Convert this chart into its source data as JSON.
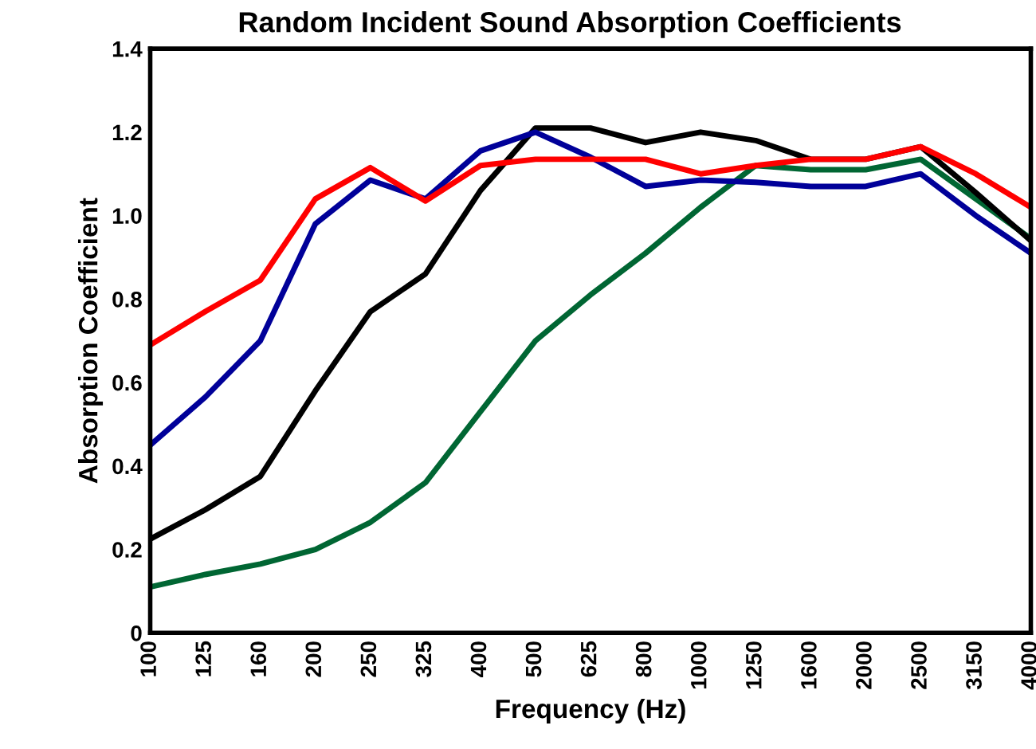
{
  "chart_data": {
    "type": "line",
    "title": "Random Incident Sound Absorption Coefficients",
    "xlabel": "Frequency (Hz)",
    "ylabel": "Absorption Coefficient",
    "categories": [
      "100",
      "125",
      "160",
      "200",
      "250",
      "325",
      "400",
      "500",
      "625",
      "800",
      "1000",
      "1250",
      "1600",
      "2000",
      "2500",
      "3150",
      "4000"
    ],
    "series": [
      {
        "color": "#006633",
        "values": [
          0.11,
          0.14,
          0.165,
          0.2,
          0.265,
          0.36,
          0.53,
          0.7,
          0.81,
          0.91,
          1.02,
          1.12,
          1.11,
          1.11,
          1.135,
          1.04,
          0.945
        ]
      },
      {
        "color": "#000000",
        "values": [
          0.225,
          0.295,
          0.375,
          0.58,
          0.77,
          0.86,
          1.06,
          1.21,
          1.21,
          1.175,
          1.2,
          1.18,
          1.135,
          1.135,
          1.165,
          1.055,
          0.94
        ]
      },
      {
        "color": "#000099",
        "values": [
          0.45,
          0.565,
          0.7,
          0.98,
          1.085,
          1.04,
          1.155,
          1.2,
          1.14,
          1.07,
          1.085,
          1.08,
          1.07,
          1.07,
          1.1,
          1.0,
          0.91
        ]
      },
      {
        "color": "#ff0000",
        "values": [
          0.69,
          0.77,
          0.845,
          1.04,
          1.115,
          1.035,
          1.12,
          1.135,
          1.135,
          1.135,
          1.1,
          1.12,
          1.135,
          1.135,
          1.165,
          1.1,
          1.02
        ]
      }
    ],
    "ylim": [
      0,
      1.4
    ],
    "yticks": [
      0,
      {
        "value": 0.2,
        "label": "0.2"
      },
      {
        "value": 0.4,
        "label": "0.4"
      },
      {
        "value": 0.6,
        "label": "0.6"
      },
      {
        "value": 0.8,
        "label": "0.8"
      },
      {
        "value": 1.0,
        "label": "1.0"
      },
      {
        "value": 1.2,
        "label": "1.2"
      },
      {
        "value": 1.4,
        "label": "1.4"
      }
    ],
    "grid": false,
    "marker": "none",
    "line_style": "solid"
  }
}
